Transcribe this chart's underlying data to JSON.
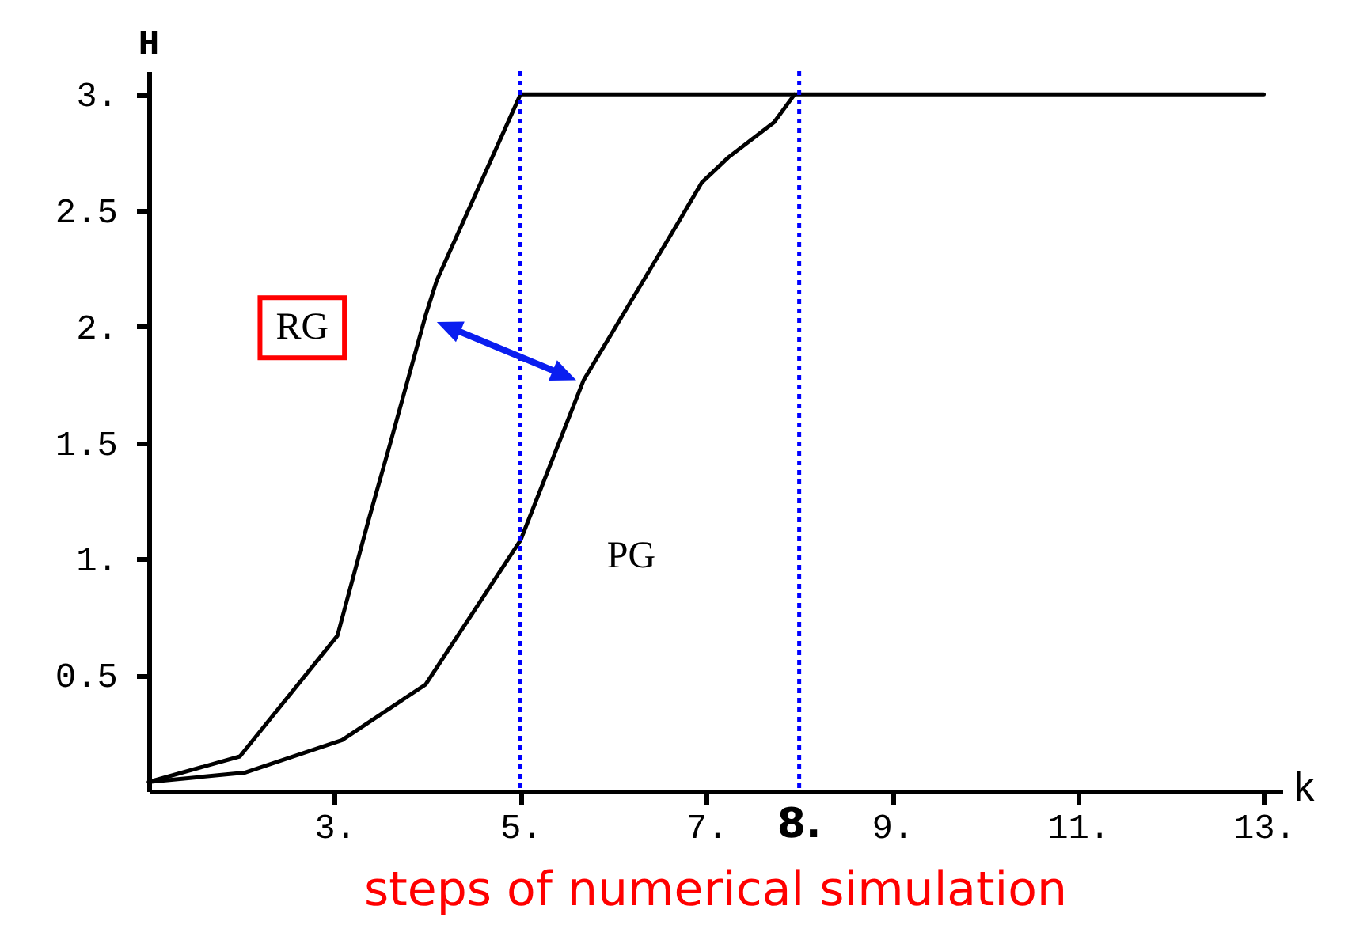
{
  "chart_data": {
    "type": "line",
    "ylabel": "H",
    "xlabel": "k",
    "series": [
      {
        "name": "RG",
        "color": "#000000",
        "x": [
          1,
          1.98,
          3.03,
          3.36,
          3.6,
          3.98,
          4.1,
          5.0,
          13
        ],
        "values": [
          0.04,
          0.15,
          0.67,
          1.16,
          1.5,
          2.05,
          2.2,
          3.0,
          3.0
        ]
      },
      {
        "name": "PG",
        "color": "#000000",
        "x": [
          1,
          2.03,
          3.08,
          3.98,
          5.0,
          5.68,
          6.7,
          6.95,
          7.24,
          7.73,
          7.95
        ],
        "values": [
          0.04,
          0.08,
          0.22,
          0.46,
          1.08,
          1.77,
          2.45,
          2.62,
          2.73,
          2.88,
          3.0
        ]
      }
    ],
    "xlim": [
      1,
      13.2
    ],
    "ylim": [
      0,
      3.1
    ],
    "xticks": [
      {
        "value": 3,
        "label": "3."
      },
      {
        "value": 5,
        "label": "5."
      },
      {
        "value": 7,
        "label": "7."
      },
      {
        "value": 9,
        "label": "9."
      },
      {
        "value": 11,
        "label": "11."
      },
      {
        "value": 13,
        "label": "13."
      }
    ],
    "yticks": [
      0.5,
      {
        "value": 1,
        "label": "1."
      },
      1.5,
      {
        "value": 2,
        "label": "2."
      },
      2.5,
      {
        "value": 3,
        "label": "3."
      }
    ],
    "ref_lines": [
      {
        "axis": "x",
        "value": 5,
        "color": "#0000ff",
        "line_style": "dotted"
      },
      {
        "axis": "x",
        "value": 8,
        "label": "8.",
        "color": "#0000ff",
        "line_style": "dotted"
      }
    ],
    "annotations": [
      "steps of numerical simulation"
    ],
    "grid": false,
    "marker": "none",
    "line_style": "solid"
  }
}
